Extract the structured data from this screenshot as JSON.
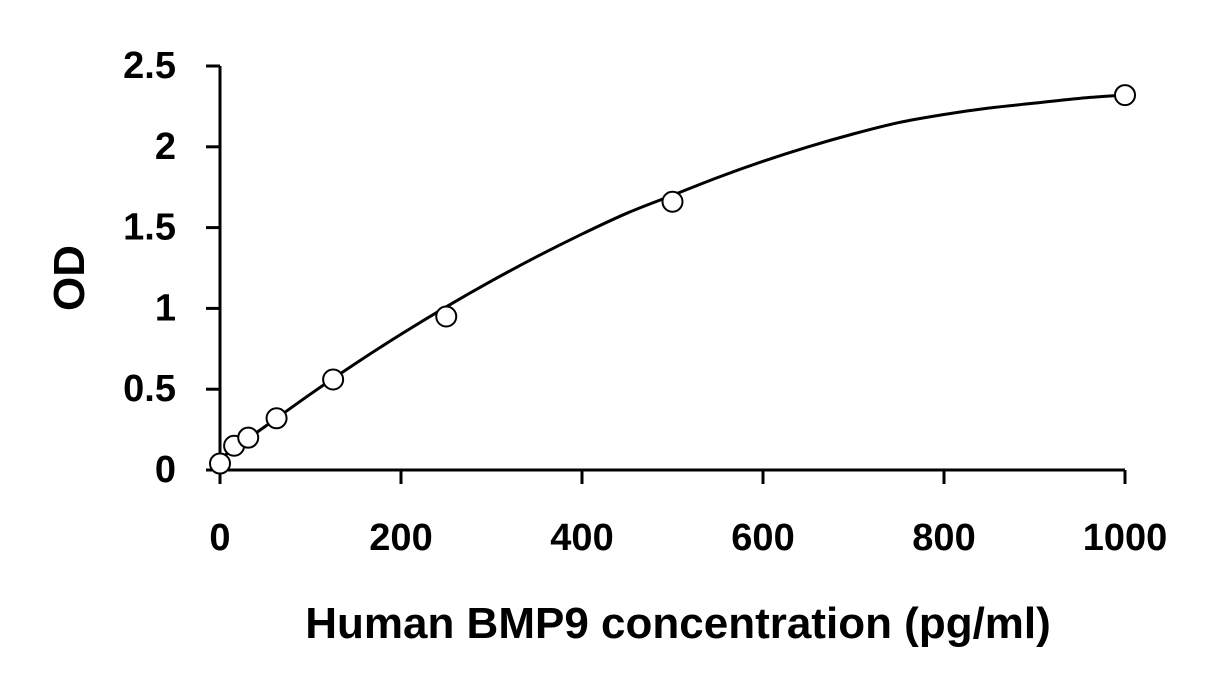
{
  "chart_data": {
    "type": "scatter",
    "title": "",
    "xlabel": "Human BMP9 concentration (pg/ml)",
    "ylabel": "OD",
    "xlim": [
      0,
      1000
    ],
    "ylim": [
      0,
      2.5
    ],
    "x_ticks": [
      0,
      200,
      400,
      600,
      800,
      1000
    ],
    "x_tick_labels": [
      "0",
      "200",
      "400",
      "600",
      "800",
      "1000"
    ],
    "y_ticks": [
      0,
      0.5,
      1,
      1.5,
      2,
      2.5
    ],
    "y_tick_labels": [
      "0",
      "0.5",
      "1",
      "1.5",
      "2",
      "2.5"
    ],
    "grid": false,
    "legend": "none",
    "series": [
      {
        "marker": "open-circle",
        "color": "#000000",
        "x": [
          0,
          15.6,
          31.2,
          62.5,
          125,
          250,
          500,
          1000
        ],
        "y": [
          0.04,
          0.15,
          0.2,
          0.32,
          0.56,
          0.95,
          1.66,
          2.32
        ]
      }
    ],
    "trendline": {
      "type": "smooth-curve",
      "color": "#000000",
      "x": [
        0,
        50,
        100,
        150,
        200,
        250,
        300,
        350,
        400,
        450,
        500,
        550,
        600,
        650,
        700,
        750,
        800,
        850,
        900,
        950,
        1000
      ],
      "y": [
        0.07,
        0.27,
        0.47,
        0.66,
        0.84,
        1.01,
        1.17,
        1.32,
        1.46,
        1.59,
        1.7,
        1.81,
        1.91,
        2.0,
        2.08,
        2.15,
        2.2,
        2.24,
        2.27,
        2.3,
        2.32
      ]
    }
  }
}
